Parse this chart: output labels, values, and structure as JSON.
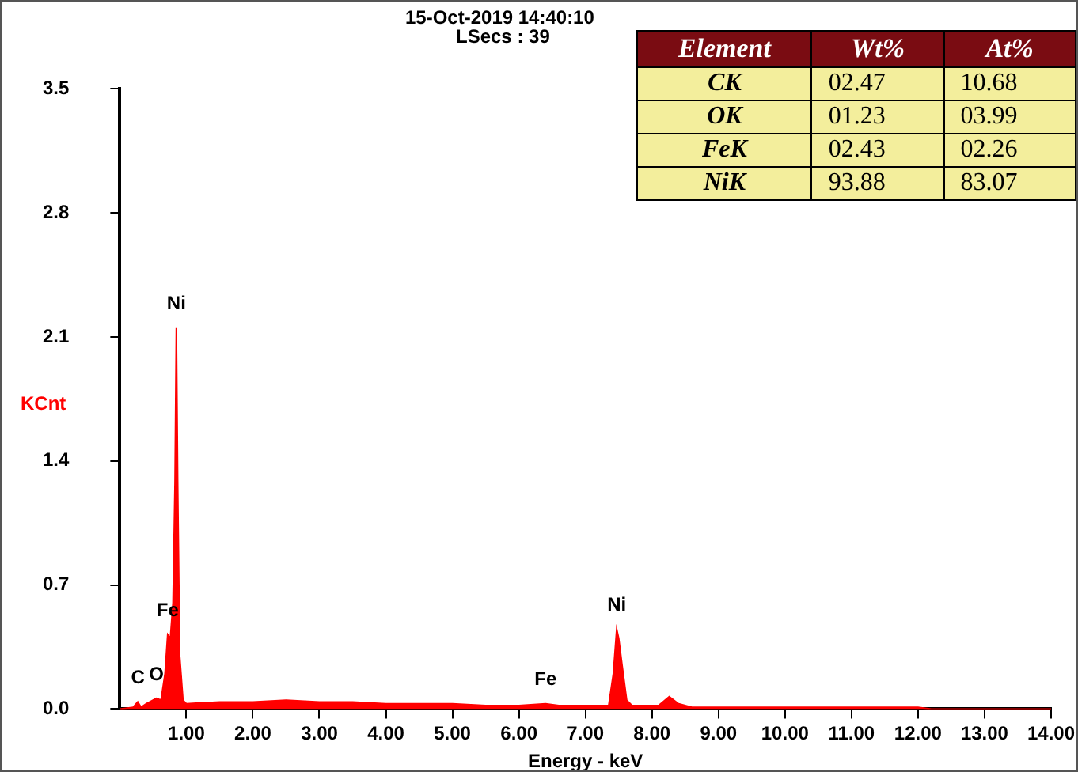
{
  "chart_data": [
    {
      "type": "area",
      "title": "15-Oct-2019 14:40:10",
      "subtitle": "LSecs : 39",
      "xlabel": "Energy - keV",
      "ylabel": "KCnt",
      "color": "#ff0000",
      "x": [
        0,
        0.2,
        0.27,
        0.32,
        0.4,
        0.5,
        0.55,
        0.62,
        0.68,
        0.72,
        0.76,
        0.8,
        0.83,
        0.85,
        0.87,
        0.9,
        0.95,
        1,
        1.5,
        2,
        2.5,
        3,
        3.5,
        4,
        4.5,
        5,
        5.5,
        6,
        6.4,
        6.6,
        7,
        7.35,
        7.42,
        7.47,
        7.5,
        7.55,
        7.62,
        7.7,
        8.1,
        8.26,
        8.4,
        8.6,
        9,
        10,
        11,
        12,
        12.2,
        14
      ],
      "values": [
        0,
        0.01,
        0.04,
        0.01,
        0.03,
        0.05,
        0.06,
        0.05,
        0.2,
        0.42,
        0.4,
        0.6,
        1.28,
        2.15,
        1.28,
        0.3,
        0.05,
        0.03,
        0.04,
        0.04,
        0.05,
        0.04,
        0.04,
        0.03,
        0.03,
        0.03,
        0.02,
        0.02,
        0.03,
        0.02,
        0.02,
        0.02,
        0.2,
        0.45,
        0.4,
        0.25,
        0.05,
        0.02,
        0.02,
        0.07,
        0.03,
        0.01,
        0.01,
        0.01,
        0.01,
        0.01,
        0,
        0
      ],
      "xlim": [
        0,
        14
      ],
      "ylim": [
        0,
        3.5
      ],
      "xticks": [
        {
          "value": 1,
          "label": "1.00"
        },
        {
          "value": 2,
          "label": "2.00"
        },
        {
          "value": 3,
          "label": "3.00"
        },
        {
          "value": 4,
          "label": "4.00"
        },
        {
          "value": 5,
          "label": "5.00"
        },
        {
          "value": 6,
          "label": "6.00"
        },
        {
          "value": 7,
          "label": "7.00"
        },
        {
          "value": 8,
          "label": "8.00"
        },
        {
          "value": 9,
          "label": "9.00"
        },
        {
          "value": 10,
          "label": "10.00"
        },
        {
          "value": 11,
          "label": "11.00"
        },
        {
          "value": 12,
          "label": "12.00"
        },
        {
          "value": 13,
          "label": "13.00"
        },
        {
          "value": 14,
          "label": "14.00"
        }
      ],
      "yticks": [
        {
          "value": 0,
          "label": "0.0"
        },
        0.7,
        1.4,
        2.1,
        2.8,
        3.5
      ],
      "annotations": [
        {
          "text": "C",
          "x": 0.27,
          "y": 0.04
        },
        {
          "text": "O",
          "x": 0.55,
          "y": 0.06
        },
        {
          "text": "Fe",
          "x": 0.72,
          "y": 0.42
        },
        {
          "text": "Ni",
          "x": 0.85,
          "y": 2.15
        },
        {
          "text": "Fe",
          "x": 6.4,
          "y": 0.03
        },
        {
          "text": "Ni",
          "x": 7.47,
          "y": 0.45
        }
      ]
    },
    {
      "type": "other",
      "categories": [
        "Element",
        "Wt%",
        "At%"
      ],
      "y_categories": [
        "CK",
        "OK",
        "FeK",
        "NiK"
      ],
      "cell_labels": [
        [
          "02.47",
          "10.68"
        ],
        [
          "01.23",
          "03.99"
        ],
        [
          "02.43",
          "02.26"
        ],
        [
          "93.88",
          "83.07"
        ]
      ]
    }
  ]
}
